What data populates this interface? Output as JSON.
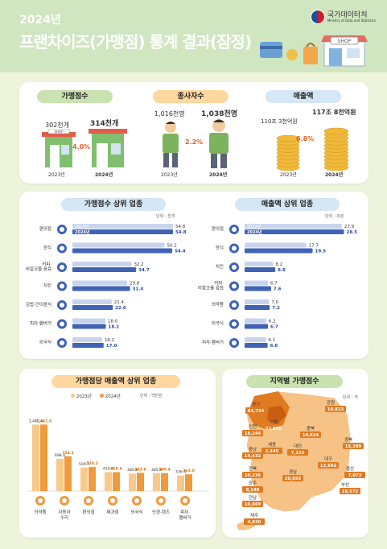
{
  "header": {
    "year": "2024년",
    "title": "프랜차이즈(가맹점) 통계 결과(잠정)",
    "agency_ko": "국가데이터처",
    "agency_en": "Ministry of Data and Statistics",
    "shop_sign": "SHOP"
  },
  "summary": {
    "years": [
      "2023년",
      "2024년"
    ],
    "stores": {
      "title": "가맹점수",
      "v2023": "302천개",
      "v2024": "314천개",
      "change": "4.0%",
      "sign": "SHOP"
    },
    "workers": {
      "title": "종사자수",
      "v2023": "1,016천명",
      "v2024": "1,038천명",
      "change": "2.2%"
    },
    "sales": {
      "title": "매출액",
      "v2023": "110조 3천억원",
      "v2024": "117조 8천억원",
      "change": "6.8%"
    }
  },
  "top_stores": {
    "title": "가맹점수 상위 업종",
    "unit": "단위 : 천개",
    "legend": [
      "2023년",
      "2024년"
    ],
    "categories": [
      "편의점",
      "한식",
      "커피·\n비알코올 음료",
      "치킨",
      "김밥·간이음식",
      "피자·햄버거",
      "외국식"
    ],
    "icons": [
      "store-icon",
      "rice-bowl-icon",
      "coffee-icon",
      "chicken-icon",
      "kimbap-icon",
      "burger-icon",
      "fork-knife-icon"
    ],
    "v2023": [
      54.8,
      50.2,
      32.2,
      29.8,
      21.4,
      18.0,
      16.2
    ],
    "v2024": [
      54.8,
      54.4,
      34.7,
      31.4,
      22.0,
      18.2,
      17.0
    ],
    "v2023_labels": [
      "54.8",
      "50.2",
      "32.2",
      "29.8",
      "21.4",
      "18.0",
      "16.2"
    ],
    "v2024_labels": [
      "54.8",
      "54.4",
      "34.7",
      "31.4",
      "22.0",
      "18.2",
      "17.0"
    ]
  },
  "top_sales": {
    "title": "매출액 상위 업종",
    "unit": "단위 : 조원",
    "legend": [
      "2023년",
      "2024년"
    ],
    "categories": [
      "편의점",
      "한식",
      "치킨",
      "커피·\n비알코올 음료",
      "의약품",
      "외국식",
      "피자·햄버거"
    ],
    "icons": [
      "store-icon",
      "rice-bowl-icon",
      "chicken-icon",
      "coffee-icon",
      "medicine-icon",
      "fork-knife-icon",
      "burger-icon"
    ],
    "v2023": [
      27.9,
      17.7,
      8.2,
      6.7,
      7.0,
      6.2,
      6.1
    ],
    "v2024": [
      28.5,
      19.5,
      8.8,
      7.6,
      7.2,
      6.7,
      6.6
    ],
    "v2023_labels": [
      "27.9",
      "17.7",
      "8.2",
      "6.7",
      "7.0",
      "6.2",
      "6.1"
    ],
    "v2024_labels": [
      "28.5",
      "19.5",
      "8.8",
      "7.6",
      "7.2",
      "6.7",
      "6.6"
    ]
  },
  "per_store_sales": {
    "title": "가맹점당 매출액 상위 업종",
    "unit": "단위 : 백만원",
    "legend": [
      "2023년",
      "2024년"
    ],
    "categories": [
      "의약품",
      "자동차\n수리",
      "편의점",
      "제과점",
      "외국식",
      "안경·렌즈",
      "피자·\n햄버거"
    ],
    "icons": [
      "medicine-icon",
      "wrench-icon",
      "store-icon",
      "bread-icon",
      "fork-knife-icon",
      "glasses-icon",
      "burger-icon"
    ],
    "v2023": [
      1440.6,
      698.4,
      509.7,
      410.6,
      380.5,
      385.8,
      336.4
    ],
    "v2024": [
      1441.0,
      754.1,
      520.2,
      410.6,
      393.8,
      390.4,
      363.0
    ],
    "v2023_labels": [
      "1,440.6",
      "698.4",
      "509.7",
      "410.6",
      "380.5",
      "385.8",
      "336.4"
    ],
    "v2024_labels": [
      "1,441.0",
      "754.1",
      "520.2",
      "410.6",
      "393.8",
      "390.4",
      "363.0"
    ]
  },
  "regions": {
    "title": "지역별 가맹점수",
    "unit": "단위 : 개",
    "items": [
      {
        "name": "경기",
        "value": "84,724"
      },
      {
        "name": "강원",
        "value": "10,823"
      },
      {
        "name": "서울",
        "value": "52,855"
      },
      {
        "name": "인천",
        "value": "18,244"
      },
      {
        "name": "충북",
        "value": "10,624"
      },
      {
        "name": "경북",
        "value": "15,289"
      },
      {
        "name": "세종",
        "value": "2,445"
      },
      {
        "name": "대전",
        "value": "7,123"
      },
      {
        "name": "충남",
        "value": "14,432"
      },
      {
        "name": "대구",
        "value": "13,692"
      },
      {
        "name": "울산",
        "value": "7,073"
      },
      {
        "name": "전북",
        "value": "10,236"
      },
      {
        "name": "경남",
        "value": "20,693"
      },
      {
        "name": "광주",
        "value": "9,198"
      },
      {
        "name": "부산",
        "value": "19,572"
      },
      {
        "name": "전남",
        "value": "10,869"
      },
      {
        "name": "제주",
        "value": "4,830"
      }
    ]
  },
  "chart_data": [
    {
      "type": "bar",
      "title": "가맹점수 상위 업종",
      "unit": "천개",
      "categories": [
        "편의점",
        "한식",
        "커피·비알코올 음료",
        "치킨",
        "김밥·간이음식",
        "피자·햄버거",
        "외국식"
      ],
      "series": [
        {
          "name": "2023년",
          "values": [
            54.8,
            50.2,
            32.2,
            29.8,
            21.4,
            18.0,
            16.2
          ]
        },
        {
          "name": "2024년",
          "values": [
            54.8,
            54.4,
            34.7,
            31.4,
            22.0,
            18.2,
            17.0
          ]
        }
      ]
    },
    {
      "type": "bar",
      "title": "매출액 상위 업종",
      "unit": "조원",
      "categories": [
        "편의점",
        "한식",
        "치킨",
        "커피·비알코올 음료",
        "의약품",
        "외국식",
        "피자·햄버거"
      ],
      "series": [
        {
          "name": "2023년",
          "values": [
            27.9,
            17.7,
            8.2,
            6.7,
            7.0,
            6.2,
            6.1
          ]
        },
        {
          "name": "2024년",
          "values": [
            28.5,
            19.5,
            8.8,
            7.6,
            7.2,
            6.7,
            6.6
          ]
        }
      ]
    },
    {
      "type": "bar",
      "title": "가맹점당 매출액 상위 업종",
      "unit": "백만원",
      "categories": [
        "의약품",
        "자동차 수리",
        "편의점",
        "제과점",
        "외국식",
        "안경·렌즈",
        "피자·햄버거"
      ],
      "series": [
        {
          "name": "2023년",
          "values": [
            1440.6,
            698.4,
            509.7,
            410.6,
            380.5,
            385.8,
            336.4
          ]
        },
        {
          "name": "2024년",
          "values": [
            1441.0,
            754.1,
            520.2,
            410.6,
            393.8,
            390.4,
            363.0
          ]
        }
      ]
    },
    {
      "type": "bar",
      "title": "가맹점수",
      "categories": [
        "2023년",
        "2024년"
      ],
      "values": [
        302,
        314
      ],
      "unit": "천개"
    },
    {
      "type": "bar",
      "title": "종사자수",
      "categories": [
        "2023년",
        "2024년"
      ],
      "values": [
        1016,
        1038
      ],
      "unit": "천명"
    },
    {
      "type": "bar",
      "title": "매출액",
      "categories": [
        "2023년",
        "2024년"
      ],
      "values": [
        110.3,
        117.8
      ],
      "unit": "조원"
    }
  ],
  "colors": {
    "bar2023": "#c8d4ec",
    "bar2024": "#3f63b5",
    "col2023": "#f7c98a",
    "col2024": "#ef9a3c",
    "regionDark": "#e07b22",
    "regionLight": "#f6c286"
  }
}
